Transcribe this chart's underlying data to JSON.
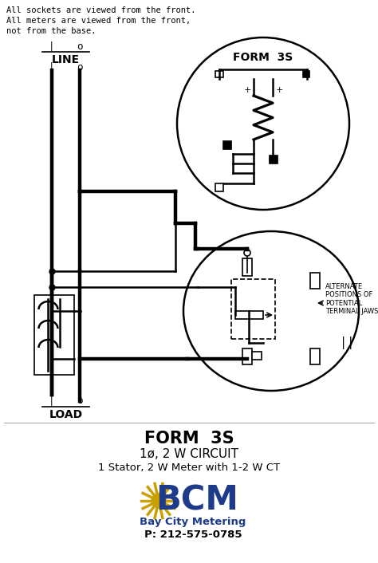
{
  "title": "FORM  3S",
  "subtitle1": "1ø, 2 W CIRCUIT",
  "subtitle2": "1 Stator, 2 W Meter with 1-2 W CT",
  "phone": "P: 212-575-0785",
  "bcm_text": "Bay City Metering",
  "note_line1": "All sockets are viewed from the front.",
  "note_line2": "All meters are viewed from the front,",
  "note_line3": "not from the base.",
  "form3s_label": "FORM  3S",
  "line_label": "LINE",
  "load_label": "LOAD",
  "alternate_label": "ALTERNATE\nPOSITIONS OF\nPOTENTIAL\nTERMINAL JAWS",
  "bg_color": "#ffffff",
  "line_color": "#000000",
  "bcm_blue": "#1e3a8a",
  "bcm_gold": "#c8a000"
}
